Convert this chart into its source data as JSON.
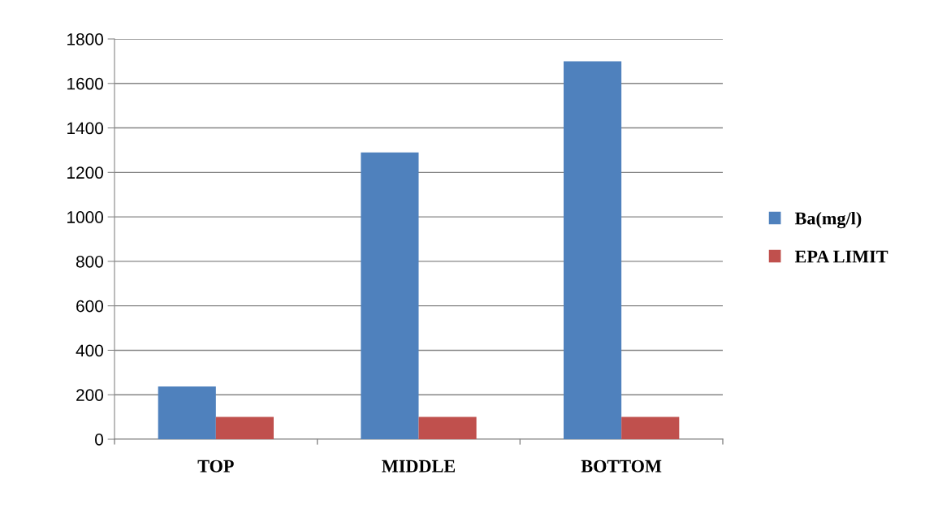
{
  "chart_data": {
    "type": "bar",
    "categories": [
      "TOP",
      "MIDDLE",
      "BOTTOM"
    ],
    "series": [
      {
        "name": "Ba(mg/l)",
        "color": "#4f81bd",
        "values": [
          237,
          1290,
          1700
        ]
      },
      {
        "name": "EPA LIMIT",
        "color": "#c0504d",
        "values": [
          100,
          100,
          100
        ]
      }
    ],
    "ylim": [
      0,
      1800
    ],
    "yticks": [
      0,
      200,
      400,
      600,
      800,
      1000,
      1200,
      1400,
      1600,
      1800
    ],
    "grid": "y",
    "legend": "right"
  }
}
